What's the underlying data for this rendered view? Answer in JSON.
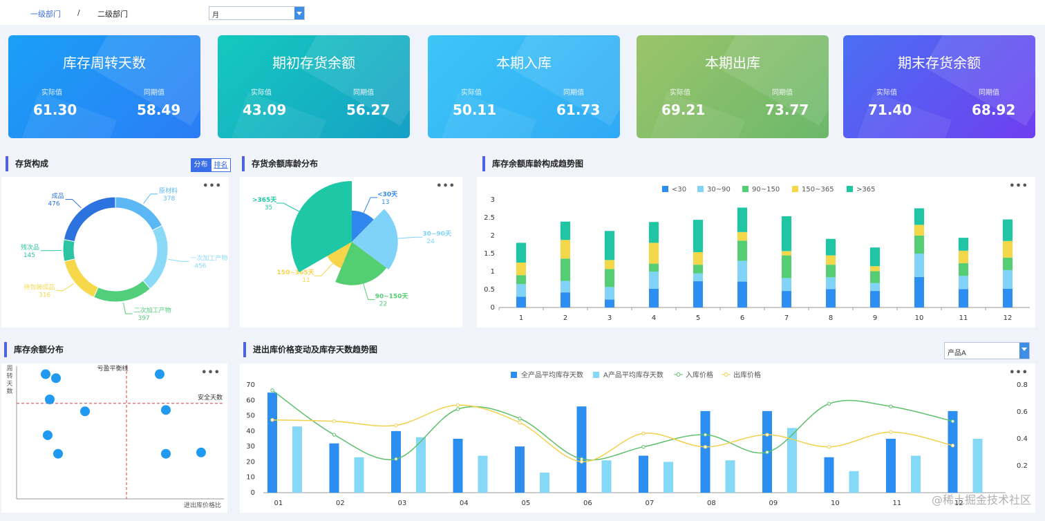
{
  "breadcrumb": {
    "level1": "一级部门",
    "separator": "/",
    "level2": "二级部门"
  },
  "period_select": {
    "value": "月"
  },
  "product_select": {
    "value": "产品A"
  },
  "kpis": [
    {
      "title": "库存周转天数",
      "label_actual": "实际值",
      "label_prior": "同期值",
      "actual": "61.30",
      "prior": "58.49",
      "grad": [
        "#1aa0f7",
        "#2b7df5"
      ]
    },
    {
      "title": "期初存货余额",
      "label_actual": "实际值",
      "label_prior": "同期值",
      "actual": "43.09",
      "prior": "56.27",
      "grad": [
        "#14c9be",
        "#16a0c6"
      ]
    },
    {
      "title": "本期入库",
      "label_actual": "实际值",
      "label_prior": "同期值",
      "actual": "50.11",
      "prior": "61.73",
      "grad": [
        "#3ec6f6",
        "#2eaaf5"
      ]
    },
    {
      "title": "本期出库",
      "label_actual": "实际值",
      "label_prior": "同期值",
      "actual": "69.21",
      "prior": "73.77",
      "grad": [
        "#9bc46a",
        "#6bb86b"
      ]
    },
    {
      "title": "期末存货余额",
      "label_actual": "实际值",
      "label_prior": "同期值",
      "actual": "71.40",
      "prior": "68.92",
      "grad": [
        "#4a6ff3",
        "#6f3ff0"
      ]
    }
  ],
  "panels": {
    "composition": {
      "title": "存货构成",
      "tab_on": "分布",
      "tab_off": "排名",
      "more": "•••"
    },
    "age": {
      "title": "存货余额库龄分布",
      "more": "•••"
    },
    "trend": {
      "title": "库存余额库龄构成趋势图",
      "more": "•••"
    },
    "scatter": {
      "title": "库存余额分布",
      "more": "•••"
    },
    "price": {
      "title": "进出库价格变动及库存天数趋势图",
      "more": "•••"
    }
  },
  "watermark": "@稀土掘金技术社区",
  "chart_data": [
    {
      "id": "composition",
      "type": "pie",
      "subtype": "donut",
      "slices": [
        {
          "name": "原材料",
          "value": 378,
          "color": "#5bb8f5"
        },
        {
          "name": "一次加工产物",
          "value": 456,
          "color": "#8ad9f7"
        },
        {
          "name": "二次加工产物",
          "value": 397,
          "color": "#52cf7a"
        },
        {
          "name": "待包装成品",
          "value": 316,
          "color": "#f5d94a"
        },
        {
          "name": "残次品",
          "value": 145,
          "color": "#2cc5a3"
        },
        {
          "name": "成品",
          "value": 476,
          "color": "#2c73e0"
        }
      ]
    },
    {
      "id": "age",
      "type": "pie",
      "subtype": "rose",
      "slices": [
        {
          "name": "<30天",
          "value": 13,
          "color": "#2f86ec"
        },
        {
          "name": "30~90天",
          "value": 24,
          "color": "#7fd3f8"
        },
        {
          "name": "90~150天",
          "value": 22,
          "color": "#53cf72"
        },
        {
          "name": "150~365天",
          "value": 11,
          "color": "#f6d54a"
        },
        {
          "name": ">365天",
          "value": 35,
          "color": "#1ec7a6"
        }
      ]
    },
    {
      "id": "trend",
      "type": "bar",
      "stacked": true,
      "categories": [
        "1",
        "2",
        "3",
        "4",
        "5",
        "6",
        "7",
        "8",
        "9",
        "10",
        "11",
        "12"
      ],
      "ylim": [
        0,
        3
      ],
      "yticks": [
        "0",
        "0.5",
        "1",
        "1.5",
        "2",
        "2.5",
        "3"
      ],
      "legend": "top",
      "series": [
        {
          "name": "<30",
          "color": "#2c8ef0",
          "values": [
            0.3,
            0.42,
            0.22,
            0.52,
            0.73,
            0.72,
            0.46,
            0.51,
            0.46,
            0.85,
            0.51,
            0.52
          ]
        },
        {
          "name": "30~90",
          "color": "#82d4f7",
          "values": [
            0.35,
            0.32,
            0.35,
            0.48,
            0.22,
            0.58,
            0.36,
            0.33,
            0.22,
            0.65,
            0.37,
            0.52
          ]
        },
        {
          "name": "90~150",
          "color": "#54ce73",
          "values": [
            0.25,
            0.62,
            0.5,
            0.22,
            0.24,
            0.56,
            0.63,
            0.35,
            0.33,
            0.5,
            0.35,
            0.35
          ]
        },
        {
          "name": "150~365",
          "color": "#f5d84a",
          "values": [
            0.35,
            0.52,
            0.25,
            0.58,
            0.35,
            0.24,
            0.12,
            0.26,
            0.14,
            0.3,
            0.35,
            0.46
          ]
        },
        {
          "name": ">365",
          "color": "#1ec6a4",
          "values": [
            0.55,
            0.51,
            0.81,
            0.58,
            0.9,
            0.68,
            0.97,
            0.46,
            0.52,
            0.46,
            0.36,
            0.6
          ]
        }
      ]
    },
    {
      "id": "scatter",
      "type": "scatter",
      "ylabel": "周转天数",
      "xlabel": "进出库价格比",
      "xlim": [
        0,
        10
      ],
      "ylim": [
        0,
        10
      ],
      "vline": {
        "x": 5.3,
        "label": "亏盈平衡线"
      },
      "hline": {
        "y": 7.2,
        "label": "安全天数"
      },
      "points": [
        [
          1.4,
          9.4
        ],
        [
          1.9,
          9.1
        ],
        [
          1.6,
          7.5
        ],
        [
          3.3,
          6.6
        ],
        [
          1.5,
          4.8
        ],
        [
          2.0,
          3.4
        ],
        [
          6.9,
          9.4
        ],
        [
          7.2,
          6.7
        ],
        [
          7.2,
          3.4
        ],
        [
          8.9,
          3.5
        ]
      ]
    },
    {
      "id": "price",
      "type": "bar+line",
      "categories": [
        "01",
        "02",
        "03",
        "04",
        "05",
        "06",
        "07",
        "08",
        "09",
        "10",
        "11",
        "12"
      ],
      "ylim_left": [
        0,
        70
      ],
      "yticks_left": [
        "0",
        "10",
        "20",
        "30",
        "40",
        "50",
        "60",
        "70"
      ],
      "ylim_right": [
        0,
        0.8
      ],
      "yticks_right": [
        "0.2",
        "0.4",
        "0.6",
        "0.8"
      ],
      "legend": "top",
      "series": [
        {
          "name": "全产品平均库存天数",
          "type": "bar",
          "axis": "left",
          "color": "#2b8ef0",
          "values": [
            65,
            32,
            40,
            35,
            30,
            56,
            24,
            53,
            53,
            23,
            35,
            53
          ]
        },
        {
          "name": "A产品平均库存天数",
          "type": "bar",
          "axis": "left",
          "color": "#86d8f7",
          "values": [
            43,
            23,
            36,
            24,
            13,
            21,
            20,
            21,
            42,
            14,
            24,
            35
          ]
        },
        {
          "name": "入库价格",
          "type": "line",
          "axis": "right",
          "color": "#5cbf6a",
          "values": [
            0.76,
            0.43,
            0.25,
            0.62,
            0.55,
            0.25,
            0.34,
            0.43,
            0.3,
            0.66,
            0.64,
            0.53
          ]
        },
        {
          "name": "出库价格",
          "type": "line",
          "axis": "right",
          "color": "#f2d04c",
          "values": [
            0.54,
            0.53,
            0.5,
            0.65,
            0.52,
            0.23,
            0.44,
            0.34,
            0.43,
            0.34,
            0.45,
            0.35
          ]
        }
      ]
    }
  ]
}
